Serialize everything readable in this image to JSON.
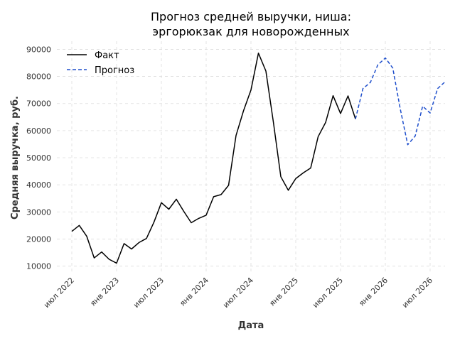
{
  "chart_data": {
    "type": "line",
    "title_lines": [
      "Прогноз средней выручки, ниша:",
      "эргорюкзак для новорожденных"
    ],
    "xlabel": "Дата",
    "ylabel": "Средняя выручка, руб.",
    "grid": true,
    "legend_placement": "top-left",
    "ylim": [
      7000,
      93000
    ],
    "xlim": [
      "2022-05",
      "2026-09"
    ],
    "y_ticks": [
      {
        "value": 10000,
        "label": "10000"
      },
      {
        "value": 20000,
        "label": "20000"
      },
      {
        "value": 30000,
        "label": "30000"
      },
      {
        "value": 40000,
        "label": "40000"
      },
      {
        "value": 50000,
        "label": "50000"
      },
      {
        "value": 60000,
        "label": "60000"
      },
      {
        "value": 70000,
        "label": "70000"
      },
      {
        "value": 80000,
        "label": "80000"
      },
      {
        "value": 90000,
        "label": "90000"
      }
    ],
    "x_ticks": [
      {
        "date": "2022-07",
        "label": "июл 2022"
      },
      {
        "date": "2023-01",
        "label": "янв 2023"
      },
      {
        "date": "2023-07",
        "label": "июл 2023"
      },
      {
        "date": "2024-01",
        "label": "янв 2024"
      },
      {
        "date": "2024-07",
        "label": "июл 2024"
      },
      {
        "date": "2025-01",
        "label": "янв 2025"
      },
      {
        "date": "2025-07",
        "label": "июл 2025"
      },
      {
        "date": "2026-01",
        "label": "янв 2026"
      },
      {
        "date": "2026-07",
        "label": "июл 2026"
      }
    ],
    "series": [
      {
        "name": "Факт",
        "color": "#000000",
        "style": "solid",
        "points": [
          {
            "x": "2022-07",
            "y": 22800
          },
          {
            "x": "2022-08",
            "y": 25000
          },
          {
            "x": "2022-09",
            "y": 21000
          },
          {
            "x": "2022-10",
            "y": 13000
          },
          {
            "x": "2022-11",
            "y": 15200
          },
          {
            "x": "2022-12",
            "y": 12500
          },
          {
            "x": "2023-01",
            "y": 11100
          },
          {
            "x": "2023-02",
            "y": 18300
          },
          {
            "x": "2023-03",
            "y": 16300
          },
          {
            "x": "2023-04",
            "y": 18700
          },
          {
            "x": "2023-05",
            "y": 20200
          },
          {
            "x": "2023-06",
            "y": 26200
          },
          {
            "x": "2023-07",
            "y": 33400
          },
          {
            "x": "2023-08",
            "y": 31000
          },
          {
            "x": "2023-09",
            "y": 34700
          },
          {
            "x": "2023-10",
            "y": 30200
          },
          {
            "x": "2023-11",
            "y": 26000
          },
          {
            "x": "2023-12",
            "y": 27600
          },
          {
            "x": "2024-01",
            "y": 28800
          },
          {
            "x": "2024-02",
            "y": 35600
          },
          {
            "x": "2024-03",
            "y": 36400
          },
          {
            "x": "2024-04",
            "y": 39800
          },
          {
            "x": "2024-05",
            "y": 58200
          },
          {
            "x": "2024-06",
            "y": 67300
          },
          {
            "x": "2024-07",
            "y": 75000
          },
          {
            "x": "2024-08",
            "y": 88600
          },
          {
            "x": "2024-09",
            "y": 82000
          },
          {
            "x": "2024-10",
            "y": 63200
          },
          {
            "x": "2024-11",
            "y": 43000
          },
          {
            "x": "2024-12",
            "y": 38000
          },
          {
            "x": "2025-01",
            "y": 42300
          },
          {
            "x": "2025-02",
            "y": 44400
          },
          {
            "x": "2025-03",
            "y": 46200
          },
          {
            "x": "2025-04",
            "y": 57800
          },
          {
            "x": "2025-05",
            "y": 63000
          },
          {
            "x": "2025-06",
            "y": 72900
          },
          {
            "x": "2025-07",
            "y": 66300
          },
          {
            "x": "2025-08",
            "y": 72800
          },
          {
            "x": "2025-09",
            "y": 64300
          }
        ]
      },
      {
        "name": "Прогноз",
        "color": "#1f4fcc",
        "style": "dashed",
        "points": [
          {
            "x": "2025-09",
            "y": 64300
          },
          {
            "x": "2025-10",
            "y": 75500
          },
          {
            "x": "2025-11",
            "y": 77800
          },
          {
            "x": "2025-12",
            "y": 84300
          },
          {
            "x": "2026-01",
            "y": 86800
          },
          {
            "x": "2026-02",
            "y": 83100
          },
          {
            "x": "2026-03",
            "y": 68000
          },
          {
            "x": "2026-04",
            "y": 54800
          },
          {
            "x": "2026-05",
            "y": 58000
          },
          {
            "x": "2026-06",
            "y": 69000
          },
          {
            "x": "2026-07",
            "y": 66500
          },
          {
            "x": "2026-08",
            "y": 75500
          },
          {
            "x": "2026-09",
            "y": 78000
          }
        ]
      }
    ]
  }
}
